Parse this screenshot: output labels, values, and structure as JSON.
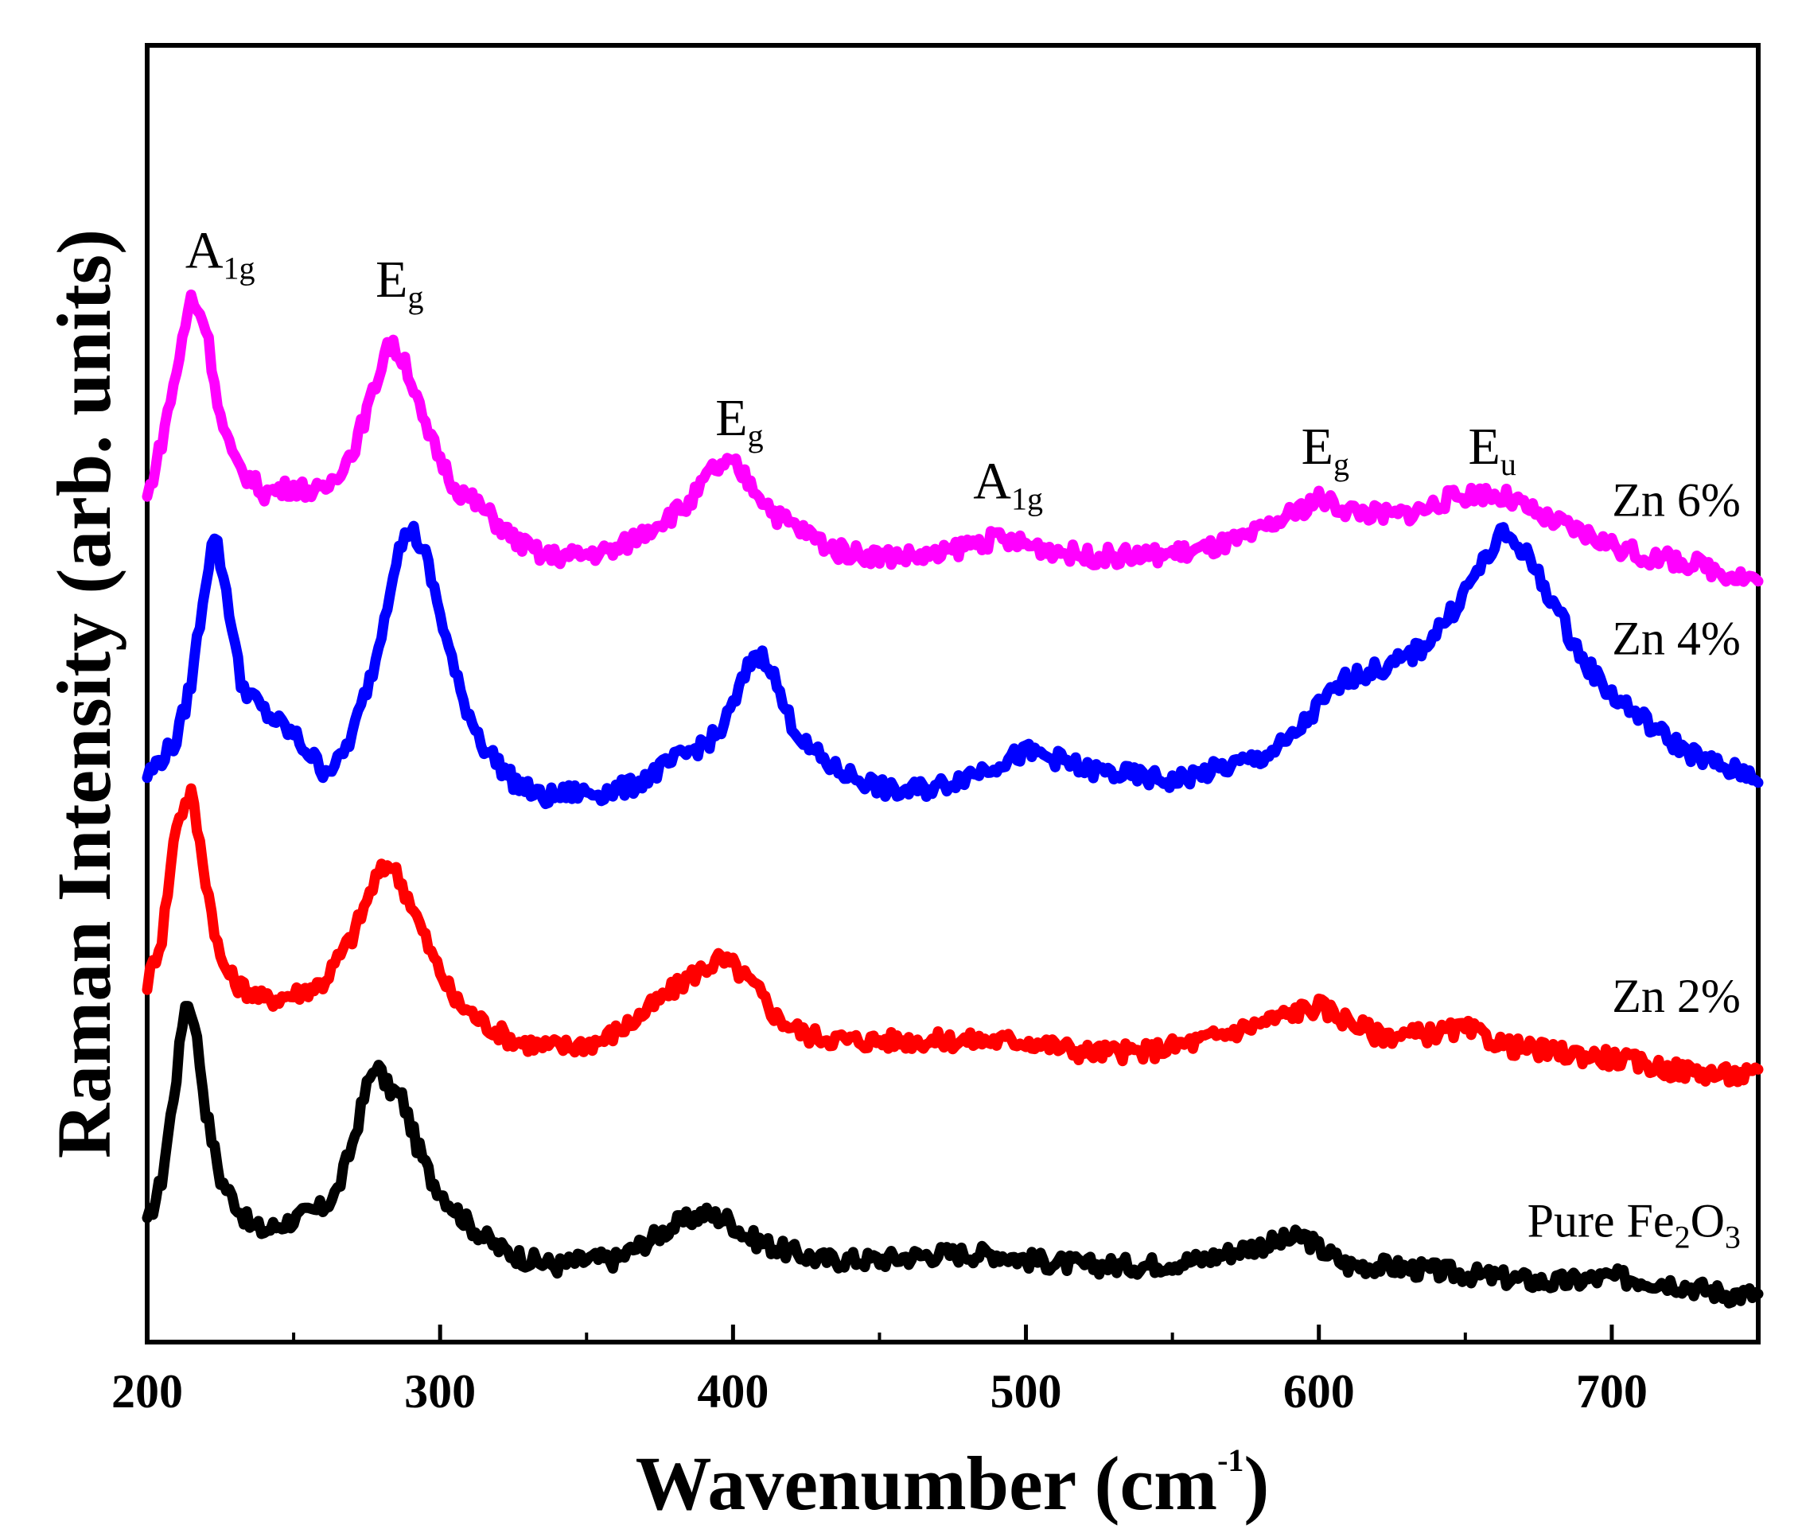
{
  "chart_data": {
    "type": "line",
    "title": "",
    "xlabel_main": "Wavenumber (cm",
    "xlabel_sup": "-1",
    "xlabel_end": ")",
    "ylabel": "Raman Intensity (arb. units)",
    "xlim": [
      200,
      750
    ],
    "ylim": [
      0,
      100
    ],
    "xticks": [
      200,
      300,
      400,
      500,
      600,
      700
    ],
    "xtick_labels": [
      "200",
      "300",
      "400",
      "500",
      "600",
      "700"
    ],
    "series": [
      {
        "name": "Pure Fe2O3",
        "label_main": "Pure Fe",
        "label_sub1": "2",
        "label_mid": "O",
        "label_sub2": "3",
        "color": "#000000",
        "points": [
          [
            200,
            6
          ],
          [
            205,
            10
          ],
          [
            210,
            19
          ],
          [
            213,
            25.5
          ],
          [
            216,
            24
          ],
          [
            220,
            16
          ],
          [
            225,
            10
          ],
          [
            230,
            8
          ],
          [
            235,
            6
          ],
          [
            240,
            5.5
          ],
          [
            245,
            6
          ],
          [
            250,
            6.5
          ],
          [
            255,
            7
          ],
          [
            260,
            7.5
          ],
          [
            265,
            9
          ],
          [
            270,
            13
          ],
          [
            275,
            18
          ],
          [
            278,
            20
          ],
          [
            282,
            18
          ],
          [
            287,
            17
          ],
          [
            292,
            13
          ],
          [
            297,
            10
          ],
          [
            303,
            8
          ],
          [
            310,
            6
          ],
          [
            320,
            4
          ],
          [
            330,
            3
          ],
          [
            340,
            2.5
          ],
          [
            350,
            3
          ],
          [
            360,
            3
          ],
          [
            370,
            4.5
          ],
          [
            380,
            6
          ],
          [
            390,
            7
          ],
          [
            398,
            6.5
          ],
          [
            405,
            5
          ],
          [
            415,
            4
          ],
          [
            430,
            3
          ],
          [
            450,
            3
          ],
          [
            470,
            3.5
          ],
          [
            480,
            3.5
          ],
          [
            490,
            3.5
          ],
          [
            500,
            3
          ],
          [
            520,
            2.5
          ],
          [
            540,
            2.5
          ],
          [
            560,
            3
          ],
          [
            575,
            4
          ],
          [
            585,
            4.5
          ],
          [
            595,
            5
          ],
          [
            600,
            4
          ],
          [
            610,
            2.5
          ],
          [
            620,
            2.5
          ],
          [
            640,
            2
          ],
          [
            660,
            1.5
          ],
          [
            680,
            1
          ],
          [
            700,
            1.5
          ],
          [
            720,
            1
          ],
          [
            740,
            0
          ],
          [
            750,
            0
          ]
        ]
      },
      {
        "name": "Zn 2%",
        "label_main": "Zn 2%",
        "color": "#ff0000",
        "points": [
          [
            200,
            27
          ],
          [
            205,
            31
          ],
          [
            210,
            41
          ],
          [
            215,
            43.5
          ],
          [
            220,
            36
          ],
          [
            225,
            29
          ],
          [
            230,
            27
          ],
          [
            240,
            25.5
          ],
          [
            250,
            26
          ],
          [
            260,
            27
          ],
          [
            270,
            31
          ],
          [
            278,
            36
          ],
          [
            283,
            37.5
          ],
          [
            290,
            34
          ],
          [
            297,
            29.5
          ],
          [
            305,
            25.5
          ],
          [
            315,
            23.5
          ],
          [
            325,
            22
          ],
          [
            335,
            21.5
          ],
          [
            345,
            21.5
          ],
          [
            355,
            22
          ],
          [
            365,
            23.5
          ],
          [
            375,
            25.5
          ],
          [
            385,
            27.5
          ],
          [
            395,
            29
          ],
          [
            400,
            28.5
          ],
          [
            408,
            26.5
          ],
          [
            415,
            24
          ],
          [
            425,
            22.5
          ],
          [
            440,
            22
          ],
          [
            460,
            22
          ],
          [
            480,
            22
          ],
          [
            500,
            22
          ],
          [
            520,
            21
          ],
          [
            540,
            21
          ],
          [
            560,
            22
          ],
          [
            580,
            23.5
          ],
          [
            592,
            24.5
          ],
          [
            600,
            25
          ],
          [
            608,
            24
          ],
          [
            620,
            22.5
          ],
          [
            635,
            22.5
          ],
          [
            650,
            23
          ],
          [
            665,
            21.5
          ],
          [
            680,
            21
          ],
          [
            700,
            20.5
          ],
          [
            720,
            19.5
          ],
          [
            740,
            19
          ],
          [
            750,
            19
          ]
        ]
      },
      {
        "name": "Zn 4%",
        "label_main": "Zn 4%",
        "color": "#0000ff",
        "points": [
          [
            200,
            45
          ],
          [
            210,
            48
          ],
          [
            215,
            53
          ],
          [
            220,
            62
          ],
          [
            223,
            66
          ],
          [
            227,
            61
          ],
          [
            232,
            53
          ],
          [
            240,
            50.5
          ],
          [
            250,
            48.5
          ],
          [
            260,
            45.5
          ],
          [
            265,
            46
          ],
          [
            270,
            48.5
          ],
          [
            278,
            55
          ],
          [
            285,
            64
          ],
          [
            290,
            66.5
          ],
          [
            295,
            64
          ],
          [
            300,
            59
          ],
          [
            307,
            52
          ],
          [
            315,
            47.5
          ],
          [
            325,
            44.5
          ],
          [
            335,
            43
          ],
          [
            345,
            43.5
          ],
          [
            355,
            43.5
          ],
          [
            365,
            44
          ],
          [
            375,
            45.5
          ],
          [
            385,
            47
          ],
          [
            395,
            48.5
          ],
          [
            400,
            51
          ],
          [
            407,
            55.5
          ],
          [
            412,
            55
          ],
          [
            418,
            50.5
          ],
          [
            425,
            47.5
          ],
          [
            435,
            45.5
          ],
          [
            445,
            44.5
          ],
          [
            455,
            43.5
          ],
          [
            470,
            44
          ],
          [
            485,
            45.5
          ],
          [
            500,
            47
          ],
          [
            510,
            46.5
          ],
          [
            520,
            45.5
          ],
          [
            535,
            45
          ],
          [
            550,
            44.5
          ],
          [
            565,
            45.5
          ],
          [
            580,
            46.5
          ],
          [
            590,
            48
          ],
          [
            600,
            51
          ],
          [
            610,
            53.5
          ],
          [
            625,
            54.5
          ],
          [
            635,
            56
          ],
          [
            645,
            59
          ],
          [
            655,
            63
          ],
          [
            663,
            66
          ],
          [
            670,
            64.5
          ],
          [
            680,
            60
          ],
          [
            690,
            55
          ],
          [
            700,
            52
          ],
          [
            710,
            50
          ],
          [
            720,
            48
          ],
          [
            730,
            46.5
          ],
          [
            740,
            45.5
          ],
          [
            750,
            45
          ]
        ]
      },
      {
        "name": "Zn 6%",
        "label_main": "Zn 6%",
        "color": "#ff00ff",
        "points": [
          [
            200,
            69
          ],
          [
            205,
            74
          ],
          [
            210,
            80
          ],
          [
            215,
            86.5
          ],
          [
            220,
            84
          ],
          [
            225,
            76
          ],
          [
            230,
            72
          ],
          [
            240,
            69.5
          ],
          [
            250,
            70
          ],
          [
            260,
            69.5
          ],
          [
            270,
            73
          ],
          [
            277,
            78
          ],
          [
            282,
            82.5
          ],
          [
            288,
            81
          ],
          [
            295,
            75
          ],
          [
            305,
            70
          ],
          [
            315,
            68
          ],
          [
            325,
            65.5
          ],
          [
            335,
            64
          ],
          [
            345,
            64
          ],
          [
            360,
            64.5
          ],
          [
            375,
            67
          ],
          [
            385,
            68.5
          ],
          [
            393,
            71.5
          ],
          [
            400,
            72
          ],
          [
            407,
            70
          ],
          [
            415,
            67.5
          ],
          [
            425,
            66
          ],
          [
            435,
            64.5
          ],
          [
            450,
            64
          ],
          [
            470,
            64
          ],
          [
            480,
            65
          ],
          [
            490,
            65.5
          ],
          [
            500,
            65
          ],
          [
            510,
            64.5
          ],
          [
            520,
            64
          ],
          [
            540,
            64
          ],
          [
            560,
            64.5
          ],
          [
            575,
            65.5
          ],
          [
            590,
            67.5
          ],
          [
            600,
            69
          ],
          [
            610,
            68
          ],
          [
            625,
            67.5
          ],
          [
            635,
            68
          ],
          [
            645,
            69
          ],
          [
            655,
            69.5
          ],
          [
            665,
            69
          ],
          [
            675,
            67.5
          ],
          [
            690,
            66
          ],
          [
            700,
            65
          ],
          [
            710,
            64
          ],
          [
            725,
            63.5
          ],
          [
            740,
            62.5
          ],
          [
            750,
            62
          ]
        ]
      }
    ],
    "peak_labels": [
      {
        "main": "A",
        "sub": "1g",
        "x": 213,
        "y": 89
      },
      {
        "main": "E",
        "sub": "g",
        "x": 278,
        "y": 86.5
      },
      {
        "main": "E",
        "sub": "g",
        "x": 394,
        "y": 74.5
      },
      {
        "main": "A",
        "sub": "1g",
        "x": 482,
        "y": 69
      },
      {
        "main": "E",
        "sub": "g",
        "x": 594,
        "y": 72
      },
      {
        "main": "E",
        "sub": "u",
        "x": 651,
        "y": 72
      }
    ],
    "series_label_positions": [
      {
        "series": "Zn 6%",
        "x": 744,
        "y": 67.5
      },
      {
        "series": "Zn 4%",
        "x": 744,
        "y": 55.5
      },
      {
        "series": "Zn 2%",
        "x": 744,
        "y": 24.5
      },
      {
        "series": "Pure Fe2O3",
        "x": 744,
        "y": 5
      }
    ]
  }
}
